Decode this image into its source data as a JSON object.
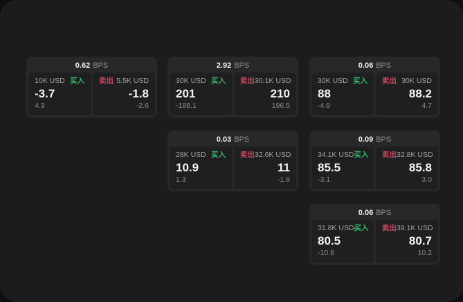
{
  "labels": {
    "bps_unit": "BPS",
    "buy": "买入",
    "sell": "卖出"
  },
  "colors": {
    "buy": "#35b56a",
    "sell": "#c84a60",
    "screen_bg": "#1c1c1e",
    "card_bg": "#28282a",
    "panel_bg": "#1f1f21"
  },
  "cards": [
    {
      "bps": "0.62",
      "buy": {
        "amount": "10K USD",
        "value": "-3.7",
        "delta": "4.3"
      },
      "sell": {
        "amount": "5.5K USD",
        "value": "-1.8",
        "delta": "-2.6"
      }
    },
    {
      "bps": "2.92",
      "buy": {
        "amount": "30K USD",
        "value": "201",
        "delta": "-188.1"
      },
      "sell": {
        "amount": "30.1K USD",
        "value": "210",
        "delta": "196.5"
      }
    },
    {
      "bps": "0.06",
      "buy": {
        "amount": "30K USD",
        "value": "88",
        "delta": "-4.9"
      },
      "sell": {
        "amount": "30K USD",
        "value": "88.2",
        "delta": "4.7"
      }
    },
    {
      "bps": "0.03",
      "buy": {
        "amount": "28K USD",
        "value": "10.9",
        "delta": "1.3"
      },
      "sell": {
        "amount": "32.6K USD",
        "value": "11",
        "delta": "-1.8"
      }
    },
    {
      "bps": "0.09",
      "buy": {
        "amount": "34.1K USD",
        "value": "85.5",
        "delta": "-3.1"
      },
      "sell": {
        "amount": "32.8K USD",
        "value": "85.8",
        "delta": "3.0"
      }
    },
    {
      "bps": "0.06",
      "buy": {
        "amount": "31.8K USD",
        "value": "80.5",
        "delta": "-10.8"
      },
      "sell": {
        "amount": "39.1K USD",
        "value": "80.7",
        "delta": "10.2"
      }
    }
  ]
}
